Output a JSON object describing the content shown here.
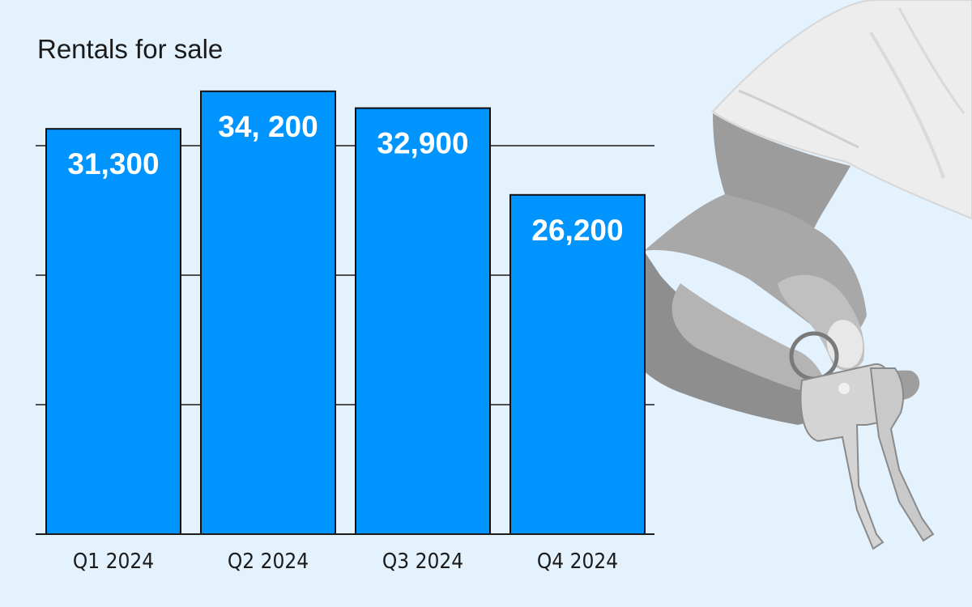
{
  "colors": {
    "background": "#e3f2fd",
    "bar": "#0094ff",
    "bar_outline": "#111111",
    "grid": "#1b1b1b",
    "data_label": "#ffffff",
    "text": "#1b1b1b"
  },
  "photo": {
    "icon": "hand-holding-keys-icon"
  },
  "chart_data": {
    "type": "bar",
    "title": "Rentals for sale",
    "xlabel": "",
    "ylabel": "",
    "categories": [
      "Q1 2024",
      "Q2 2024",
      "Q3 2024",
      "Q4 2024"
    ],
    "values": [
      31300,
      34200,
      32900,
      26200
    ],
    "data_labels": [
      "31,300",
      "34, 200",
      "32,900",
      "26,200"
    ],
    "ylim": [
      0,
      40000
    ],
    "gridlines": [
      10000,
      20000,
      30000
    ],
    "grid": true,
    "legend": "none"
  }
}
